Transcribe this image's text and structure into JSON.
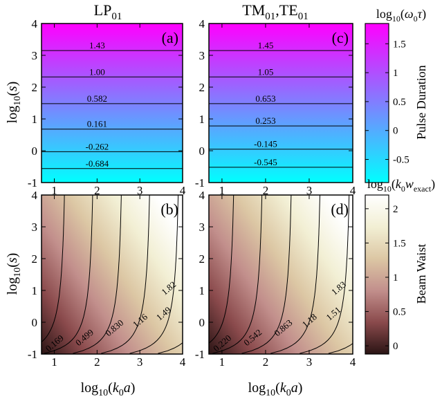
{
  "chart_data": [
    {
      "id": "a",
      "type": "heatmap",
      "panel_label": "(a)",
      "title": "LP",
      "title_sub": "01",
      "xlim": [
        0.7,
        4
      ],
      "ylim": [
        -1,
        4
      ],
      "x_ticks": [
        "1",
        "2",
        "3",
        "4"
      ],
      "y_ticks": [
        "-1",
        "0",
        "1",
        "2",
        "3",
        "4"
      ],
      "ylabel": "log10(s)",
      "colormap": "pulse",
      "contours": [
        {
          "label": "1.43",
          "y": 3.15,
          "label_x": 2.0
        },
        {
          "label": "1.00",
          "y": 2.32,
          "label_x": 2.0
        },
        {
          "label": "0.582",
          "y": 1.48,
          "label_x": 2.0
        },
        {
          "label": "0.161",
          "y": 0.68,
          "label_x": 2.0
        },
        {
          "label": "-0.262",
          "y": -0.03,
          "label_x": 2.0
        },
        {
          "label": "-0.684",
          "y": -0.56,
          "label_x": 2.0
        }
      ]
    },
    {
      "id": "c",
      "type": "heatmap",
      "panel_label": "(c)",
      "title": "TM",
      "title_sub": "01",
      "title2": ",TE",
      "title2_sub": "01",
      "xlim": [
        0.7,
        4
      ],
      "ylim": [
        -1,
        4
      ],
      "x_ticks": [
        "1",
        "2",
        "3",
        "4"
      ],
      "y_ticks": [
        "-1",
        "0",
        "1",
        "2",
        "3",
        "4"
      ],
      "colormap": "pulse",
      "contours": [
        {
          "label": "1.45",
          "y": 3.15,
          "label_x": 2.0
        },
        {
          "label": "1.05",
          "y": 2.32,
          "label_x": 2.0
        },
        {
          "label": "0.653",
          "y": 1.48,
          "label_x": 2.0
        },
        {
          "label": "0.253",
          "y": 0.78,
          "label_x": 2.0
        },
        {
          "label": "-0.145",
          "y": 0.05,
          "label_x": 2.0
        },
        {
          "label": "-0.545",
          "y": -0.52,
          "label_x": 2.0
        }
      ]
    },
    {
      "id": "b",
      "type": "heatmap",
      "panel_label": "(b)",
      "xlim": [
        0.7,
        4
      ],
      "ylim": [
        -1,
        4
      ],
      "x_ticks": [
        "1",
        "2",
        "3",
        "4"
      ],
      "y_ticks": [
        "-1",
        "0",
        "1",
        "2",
        "3",
        "4"
      ],
      "xlabel": "log10(k0a)",
      "ylabel": "log10(s)",
      "colormap": "waist",
      "contours": [
        {
          "label": "0.169",
          "x_asym": 1.32,
          "label_x": 1.05,
          "label_y": -0.73
        },
        {
          "label": "0.499",
          "x_asym": 1.98,
          "label_x": 1.75,
          "label_y": -0.55
        },
        {
          "label": "0.830",
          "x_asym": 2.65,
          "label_x": 2.45,
          "label_y": -0.25
        },
        {
          "label": "1.16",
          "x_asym": 3.31,
          "label_x": 3.05,
          "label_y": -0.02
        },
        {
          "label": "1.49",
          "x_asym": 3.98,
          "label_x": 3.6,
          "label_y": 0.2
        },
        {
          "label": "1.82",
          "x_asym": 4.64,
          "label_x": 3.72,
          "label_y": 1.0
        }
      ]
    },
    {
      "id": "d",
      "type": "heatmap",
      "panel_label": "(d)",
      "xlim": [
        0.7,
        4
      ],
      "ylim": [
        -1,
        4
      ],
      "x_ticks": [
        "1",
        "2",
        "3",
        "4"
      ],
      "y_ticks": [
        "-1",
        "0",
        "1",
        "2",
        "3",
        "4"
      ],
      "xlabel": "log10(k0a)",
      "colormap": "waist",
      "contours": [
        {
          "label": "0.220",
          "x_asym": 1.35,
          "label_x": 1.05,
          "label_y": -0.73
        },
        {
          "label": "0.542",
          "x_asym": 2.0,
          "label_x": 1.75,
          "label_y": -0.55
        },
        {
          "label": "0.863",
          "x_asym": 2.67,
          "label_x": 2.45,
          "label_y": -0.25
        },
        {
          "label": "1.18",
          "x_asym": 3.33,
          "label_x": 3.05,
          "label_y": -0.02
        },
        {
          "label": "1.51",
          "x_asym": 4.0,
          "label_x": 3.6,
          "label_y": 0.2
        },
        {
          "label": "1.83",
          "x_asym": 4.66,
          "label_x": 3.72,
          "label_y": 1.0
        }
      ]
    }
  ],
  "colorbars": [
    {
      "id": "pulse",
      "title": "log10(ω0τ)",
      "label": "Pulse Duration",
      "range": [
        -0.9,
        1.85
      ],
      "ticks": [
        "-0.5",
        "0",
        "0.5",
        "1",
        "1.5"
      ],
      "tick_values": [
        -0.5,
        0,
        0.5,
        1,
        1.5
      ],
      "colors": [
        "#00ffff",
        "#ff00ff"
      ]
    },
    {
      "id": "waist",
      "title": "log10(k0wexact)",
      "label": "Beam Waist",
      "range": [
        -0.12,
        2.2
      ],
      "ticks": [
        "0",
        "0.5",
        "1",
        "1.5",
        "2"
      ],
      "tick_values": [
        0,
        0.5,
        1,
        1.5,
        2
      ],
      "colors": [
        "#2a1414",
        "#8a4a4c",
        "#c28f8c",
        "#dcc7a4",
        "#f2efd4",
        "#ffffff"
      ]
    }
  ]
}
